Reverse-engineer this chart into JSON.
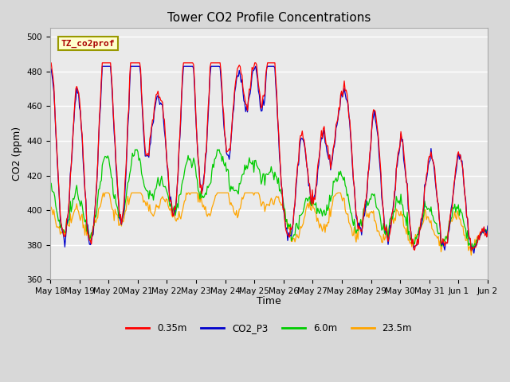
{
  "title": "Tower CO2 Profile Concentrations",
  "xlabel": "Time",
  "ylabel": "CO2 (ppm)",
  "ylim": [
    360,
    505
  ],
  "yticks": [
    360,
    380,
    400,
    420,
    440,
    460,
    480,
    500
  ],
  "x_labels": [
    "May 18",
    "May 19",
    "May 20",
    "May 21",
    "May 22",
    "May 23",
    "May 24",
    "May 25",
    "May 26",
    "May 27",
    "May 28",
    "May 29",
    "May 30",
    "May 31",
    "Jun 1",
    "Jun 2"
  ],
  "legend_label": "TZ_co2prof",
  "series_labels": [
    "0.35m",
    "CO2_P3",
    "6.0m",
    "23.5m"
  ],
  "series_colors": [
    "#ff0000",
    "#0000cc",
    "#00cc00",
    "#ffa500"
  ],
  "fig_facecolor": "#d8d8d8",
  "plot_facecolor": "#eaeaea",
  "grid_color": "#ffffff",
  "title_fontsize": 11,
  "axis_label_fontsize": 9,
  "tick_fontsize": 7.5,
  "n_points": 480,
  "spike_peak_positions": [
    0.02,
    0.95,
    1.85,
    2.1,
    2.85,
    3.05,
    3.55,
    3.85,
    4.6,
    4.85,
    5.55,
    5.8,
    6.35,
    6.55,
    7.0,
    7.45,
    7.65,
    8.6,
    9.35,
    9.85,
    10.2,
    11.15,
    12.05,
    13.1,
    14.05
  ]
}
